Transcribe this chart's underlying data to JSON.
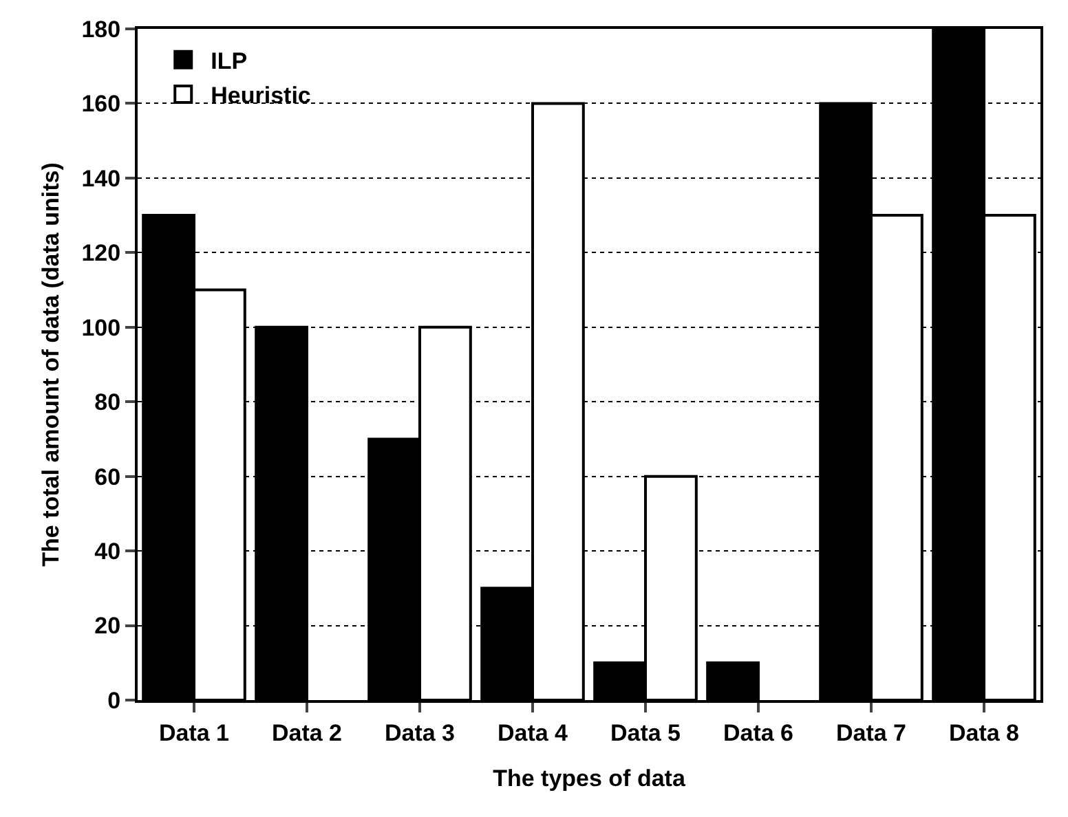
{
  "chart_data": {
    "type": "bar",
    "xlabel": "The types of data",
    "ylabel": "The total amount of data (data units)",
    "categories": [
      "Data 1",
      "Data 2",
      "Data 3",
      "Data 4",
      "Data 5",
      "Data 6",
      "Data 7",
      "Data 8"
    ],
    "series": [
      {
        "name": "ILP",
        "color": "#000000",
        "values": [
          130,
          100,
          70,
          30,
          10,
          10,
          160,
          180
        ]
      },
      {
        "name": "Heuristic",
        "color": "#ffffff",
        "values": [
          110,
          null,
          100,
          160,
          60,
          null,
          130,
          130
        ]
      }
    ],
    "ylim": [
      0,
      180
    ],
    "yticks": [
      0,
      20,
      40,
      60,
      80,
      100,
      120,
      140,
      160,
      180
    ],
    "grid": "y",
    "legend": "top left"
  }
}
